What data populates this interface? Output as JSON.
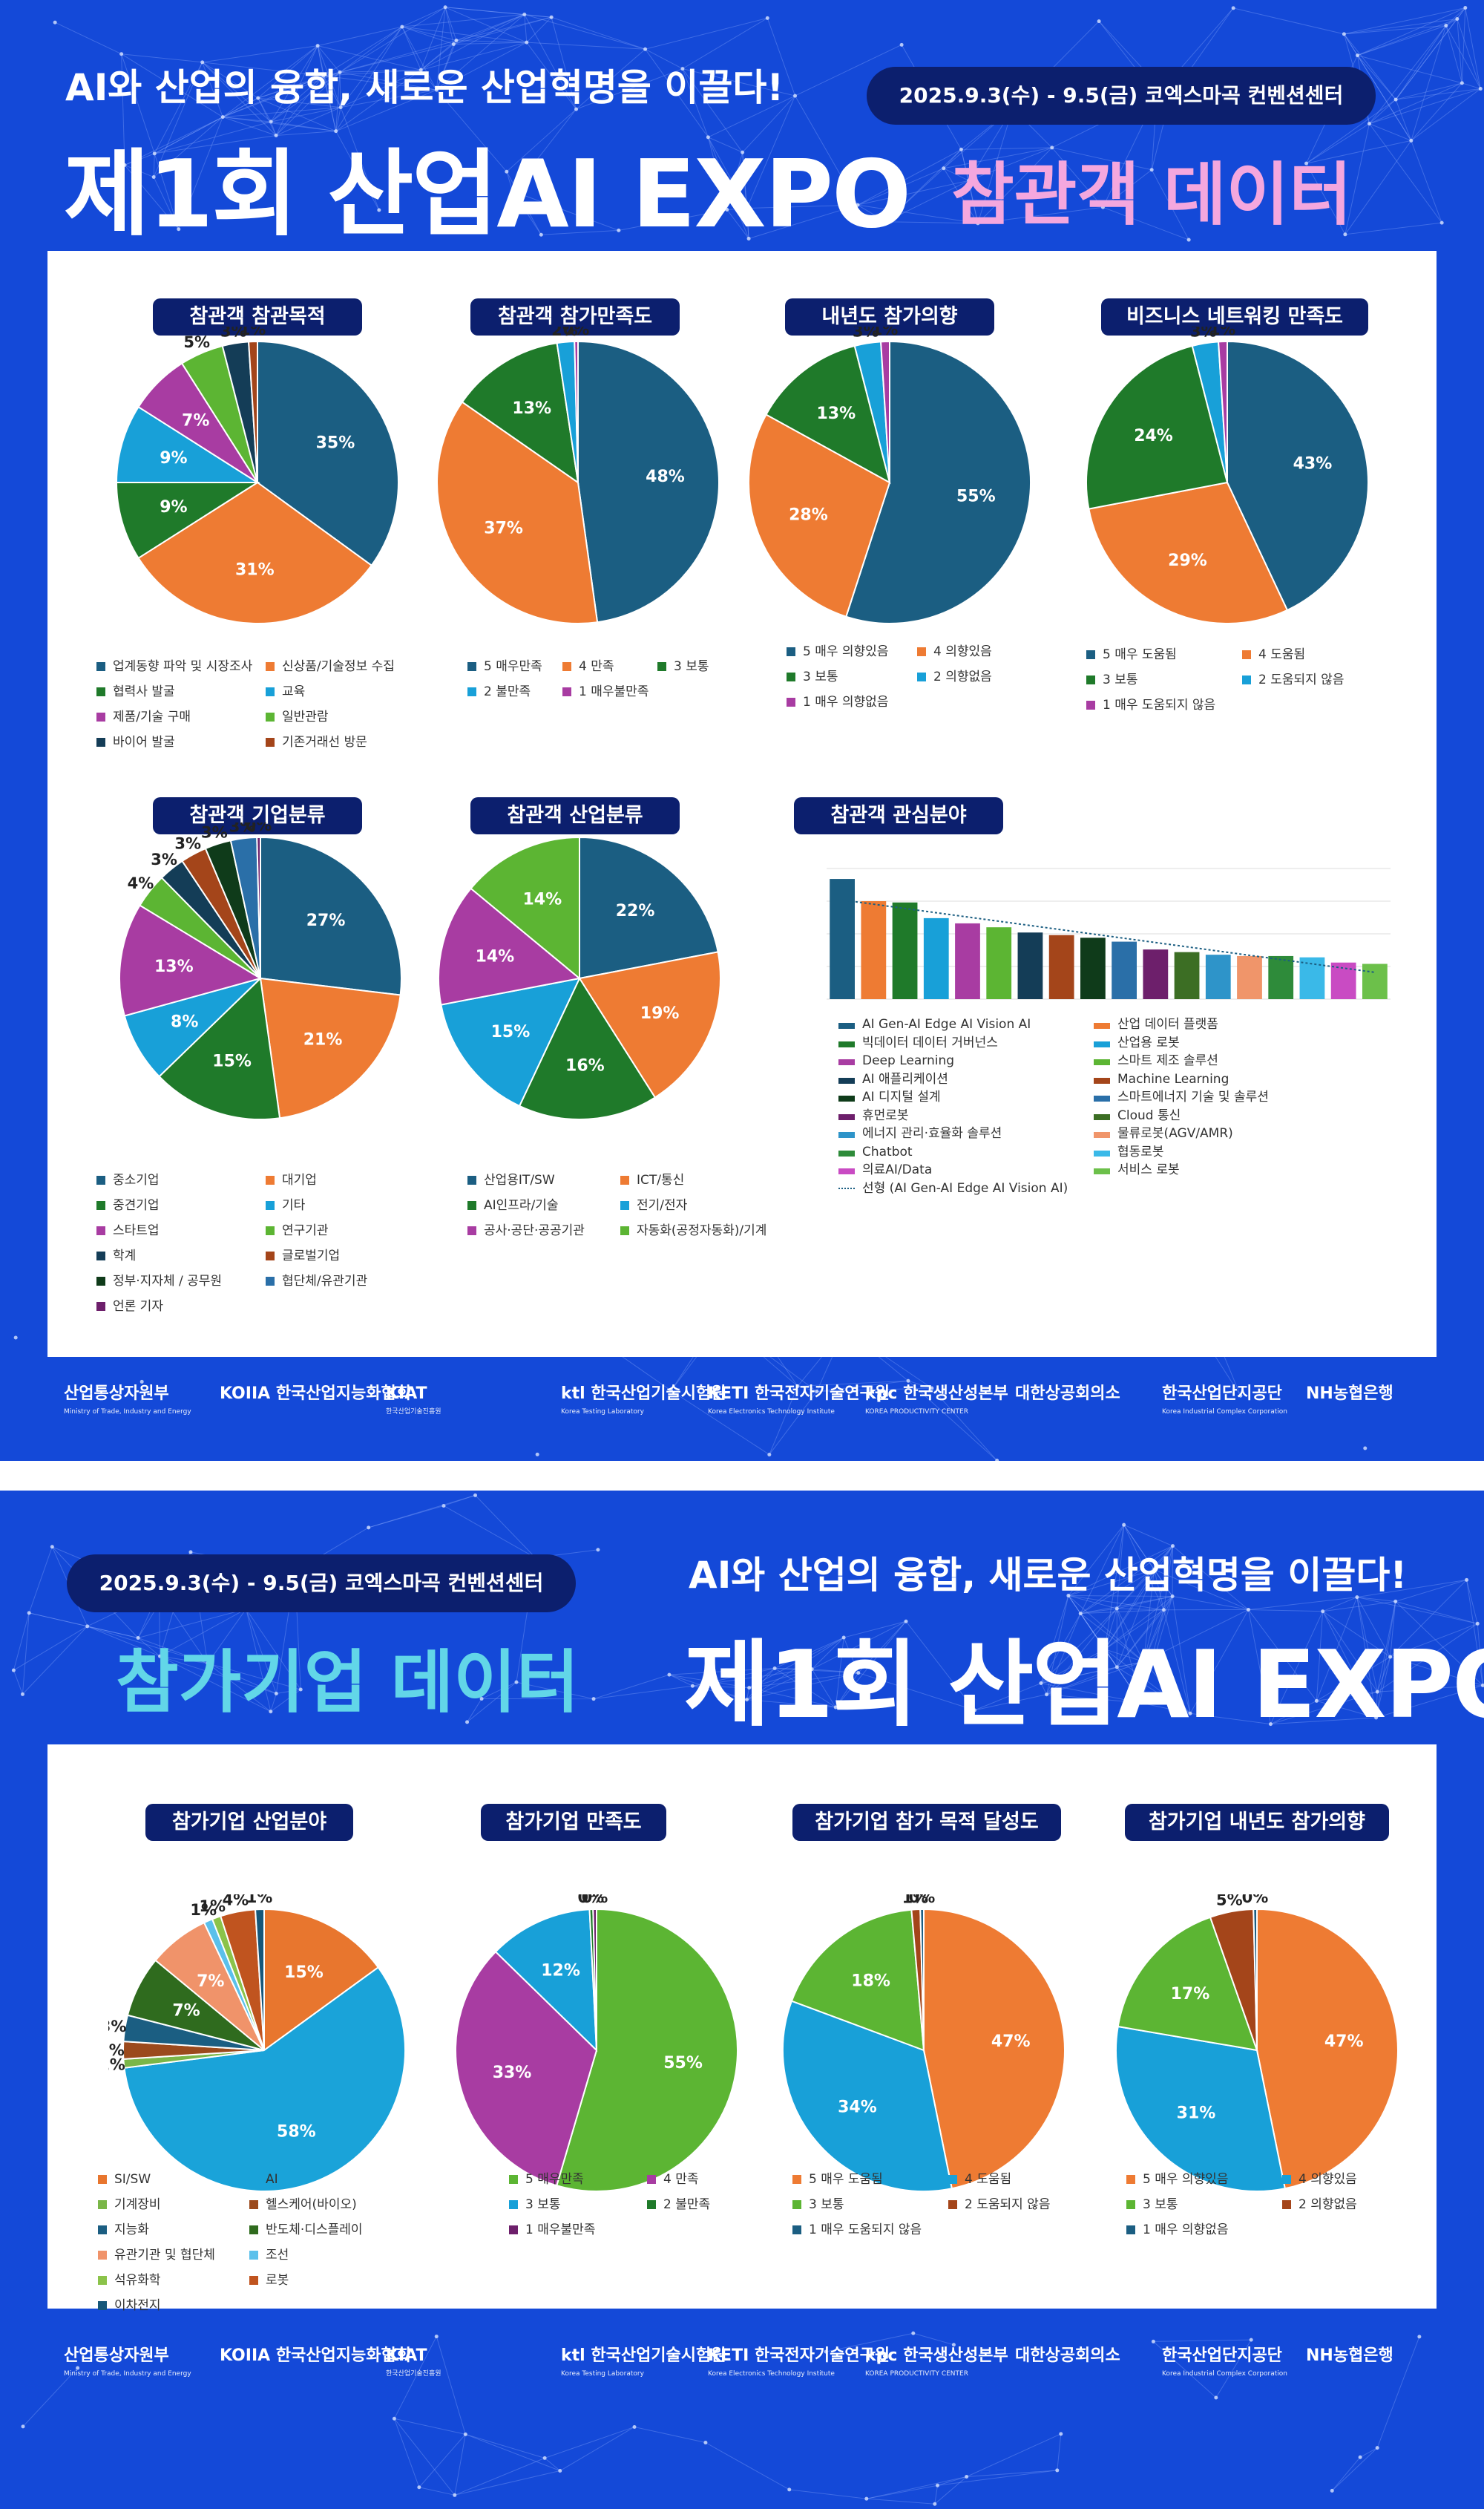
{
  "header": {
    "tagline": "AI와 산업의 융합, 새로운 산업혁명을 이끌다!",
    "title": "제1회 산업AI EXPO",
    "date": "2025.9.3(수) - 9.5(금)  코엑스마곡 컨벤션센터"
  },
  "sections": [
    {
      "subtitle": "참관객 데이터",
      "subtitle_color": "#f4a7de",
      "charts": [
        {
          "type": "pie",
          "title": "참관객 참관목적",
          "slices": [
            {
              "label": "업계동향 파악 및 시장조사",
              "value": 35,
              "text": "35%",
              "color": "#1b5e82"
            },
            {
              "label": "신상품/기술정보 수집",
              "value": 31,
              "text": "31%",
              "color": "#ee7b33"
            },
            {
              "label": "협력사 발굴",
              "value": 9,
              "text": "9%",
              "color": "#1f7a2a"
            },
            {
              "label": "교육",
              "value": 9,
              "text": "9%",
              "color": "#18a0d8"
            },
            {
              "label": "제품/기술 구매",
              "value": 7,
              "text": "7%",
              "color": "#a83ca2"
            },
            {
              "label": "일반관람",
              "value": 5,
              "text": "5%",
              "color": "#5cb533"
            },
            {
              "label": "바이어 발굴",
              "value": 3,
              "text": "3%",
              "color": "#143d57"
            },
            {
              "label": "기존거래선 방문",
              "value": 1,
              "text": "1%",
              "color": "#a4451a"
            }
          ]
        },
        {
          "type": "pie",
          "title": "참관객 참가만족도",
          "slices": [
            {
              "label": "5 매우만족",
              "value": 48,
              "text": "48%",
              "color": "#1b5e82"
            },
            {
              "label": "4 만족",
              "value": 37,
              "text": "37%",
              "color": "#ee7b33"
            },
            {
              "label": "3 보통",
              "value": 13,
              "text": "13%",
              "color": "#1f7a2a"
            },
            {
              "label": "2 불만족",
              "value": 2,
              "text": "2%",
              "color": "#18a0d8"
            },
            {
              "label": "1 매우불만족",
              "value": 0.4,
              "text": "0%",
              "color": "#a83ca2"
            }
          ]
        },
        {
          "type": "pie",
          "title": "내년도 참가의향",
          "slices": [
            {
              "label": "5 매우 의향있음",
              "value": 55,
              "text": "55%",
              "color": "#1b5e82"
            },
            {
              "label": "4 의향있음",
              "value": 28,
              "text": "28%",
              "color": "#ee7b33"
            },
            {
              "label": "3 보통",
              "value": 13,
              "text": "13%",
              "color": "#1f7a2a"
            },
            {
              "label": "2 의향없음",
              "value": 3,
              "text": "3%",
              "color": "#18a0d8"
            },
            {
              "label": "1 매우 의향없음",
              "value": 1,
              "text": "1%",
              "color": "#a83ca2"
            }
          ]
        },
        {
          "type": "pie",
          "title": "비즈니스 네트워킹 만족도",
          "slices": [
            {
              "label": "5 매우 도움됨",
              "value": 43,
              "text": "43%",
              "color": "#1b5e82"
            },
            {
              "label": "4 도움됨",
              "value": 29,
              "text": "29%",
              "color": "#ee7b33"
            },
            {
              "label": "3 보통",
              "value": 24,
              "text": "24%",
              "color": "#1f7a2a"
            },
            {
              "label": "2 도움되지 않음",
              "value": 3,
              "text": "3%",
              "color": "#18a0d8"
            },
            {
              "label": "1 매우 도움되지 않음",
              "value": 1,
              "text": "1%",
              "color": "#a83ca2"
            }
          ]
        },
        {
          "type": "pie",
          "title": "참관객 기업분류",
          "slices": [
            {
              "label": "중소기업",
              "value": 27,
              "text": "27%",
              "color": "#1b5e82"
            },
            {
              "label": "대기업",
              "value": 21,
              "text": "21%",
              "color": "#ee7b33"
            },
            {
              "label": "중견기업",
              "value": 15,
              "text": "15%",
              "color": "#1f7a2a"
            },
            {
              "label": "기타",
              "value": 8,
              "text": "8%",
              "color": "#18a0d8"
            },
            {
              "label": "스타트업",
              "value": 13,
              "text": "13%",
              "color": "#a83ca2"
            },
            {
              "label": "연구기관",
              "value": 4,
              "text": "4%",
              "color": "#5cb533"
            },
            {
              "label": "학계",
              "value": 3,
              "text": "3%",
              "color": "#143d57"
            },
            {
              "label": "글로벌기업",
              "value": 3,
              "text": "3%",
              "color": "#a4451a"
            },
            {
              "label": "정부·지자체 / 공무원",
              "value": 3,
              "text": "3%",
              "color": "#0f3b1a"
            },
            {
              "label": "협단체/유관기관",
              "value": 3,
              "text": "3%",
              "color": "#2a6fa8"
            },
            {
              "label": "언론 기자",
              "value": 0.4,
              "text": "0%",
              "color": "#6d1f6b"
            }
          ]
        },
        {
          "type": "pie",
          "title": "참관객 산업분류",
          "slices": [
            {
              "label": "산업용IT/SW",
              "value": 22,
              "text": "22%",
              "color": "#1b5e82"
            },
            {
              "label": "ICT/통신",
              "value": 19,
              "text": "19%",
              "color": "#ee7b33"
            },
            {
              "label": "AI인프라/기술",
              "value": 16,
              "text": "16%",
              "color": "#1f7a2a"
            },
            {
              "label": "전기/전자",
              "value": 15,
              "text": "15%",
              "color": "#18a0d8"
            },
            {
              "label": "공사·공단·공공기관",
              "value": 14,
              "text": "14%",
              "color": "#a83ca2"
            },
            {
              "label": "자동화(공정자동화)/기계",
              "value": 14,
              "text": "14%",
              "color": "#5cb533"
            }
          ]
        },
        {
          "type": "bar",
          "title": "참관객 관심분야",
          "trendline_label": "선형 (AI Gen-AI Edge AI Vision AI)",
          "categories": [
            "AI Gen-AI Edge AI Vision AI",
            "산업 데이터 플랫폼",
            "빅데이터 데이터 거버넌스",
            "산업용 로봇",
            "Deep Learning",
            "스마트 제조 솔루션",
            "AI 애플리케이션",
            "Machine Learning",
            "AI 디지털 설계",
            "스마트에너지 기술 및 솔루션",
            "휴먼로봇",
            "Cloud 통신",
            "에너지 관리·효율화 솔루션",
            "물류로봇(AGV/AMR)",
            "Chatbot",
            "협동로봇",
            "의료AI/Data",
            "서비스 로봇"
          ],
          "values": [
            92,
            75,
            74,
            62,
            58,
            55,
            51,
            49,
            47,
            44,
            38,
            36,
            34,
            33,
            33,
            32,
            28,
            27
          ],
          "colors": [
            "#1b5e82",
            "#ee7b33",
            "#1f7a2a",
            "#18a0d8",
            "#a83ca2",
            "#5cb533",
            "#143d57",
            "#a4451a",
            "#0f3b1a",
            "#2a6fa8",
            "#6d1f6b",
            "#3c6e24",
            "#2e94c9",
            "#f0956a",
            "#2e8b3a",
            "#3ab9e8",
            "#c94bc3",
            "#6cc04a"
          ]
        }
      ]
    },
    {
      "subtitle": "참가기업 데이터",
      "subtitle_color": "#62d6e8",
      "charts": [
        {
          "type": "pie",
          "title": "참가기업  산업분야",
          "slices": [
            {
              "label": "SI/SW",
              "value": 15,
              "text": "15%",
              "color": "#e8762e"
            },
            {
              "label": "AI",
              "value": 58,
              "text": "58%",
              "color": "#1aa3d9"
            },
            {
              "label": "기계장비",
              "value": 1,
              "text": "1%",
              "color": "#7ab648"
            },
            {
              "label": "헬스케어(바이오)",
              "value": 2,
              "text": "2%",
              "color": "#9b4a1d"
            },
            {
              "label": "지능화",
              "value": 3,
              "text": "3%",
              "color": "#1b5e82"
            },
            {
              "label": "반도체·디스플레이",
              "value": 7,
              "text": "7%",
              "color": "#2f6b1e"
            },
            {
              "label": "유관기관 및 협단체",
              "value": 7,
              "text": "7%",
              "color": "#f0936a"
            },
            {
              "label": "조선",
              "value": 1,
              "text": "1%",
              "color": "#5bc0eb"
            },
            {
              "label": "석유화학",
              "value": 1,
              "text": "1%",
              "color": "#8bc34a"
            },
            {
              "label": "로봇",
              "value": 4,
              "text": "4%",
              "color": "#c0541f"
            },
            {
              "label": "이차전지",
              "value": 1,
              "text": "1%",
              "color": "#15577a"
            }
          ]
        },
        {
          "type": "pie",
          "title": "참가기업 만족도",
          "slices": [
            {
              "label": "5 매우만족",
              "value": 55,
              "text": "55%",
              "color": "#5cb533"
            },
            {
              "label": "4 만족",
              "value": 33,
              "text": "33%",
              "color": "#a83ca2"
            },
            {
              "label": "3 보통",
              "value": 12,
              "text": "12%",
              "color": "#18a0d8"
            },
            {
              "label": "2 불만족",
              "value": 0.4,
              "text": "0%",
              "color": "#1f7a2a"
            },
            {
              "label": "1 매우불만족",
              "value": 0.4,
              "text": "0%",
              "color": "#6d1f6b"
            }
          ]
        },
        {
          "type": "pie",
          "title": "참가기업 참가 목적 달성도",
          "slices": [
            {
              "label": "5 매우 도움됨",
              "value": 47,
              "text": "47%",
              "color": "#ee7b33"
            },
            {
              "label": "4 도움됨",
              "value": 34,
              "text": "34%",
              "color": "#18a0d8"
            },
            {
              "label": "3 보통",
              "value": 18,
              "text": "18%",
              "color": "#5cb533"
            },
            {
              "label": "2 도움되지 않음",
              "value": 1,
              "text": "1%",
              "color": "#a4451a"
            },
            {
              "label": "1 매우 도움되지 않음",
              "value": 0.4,
              "text": "0%",
              "color": "#1b5e82"
            }
          ]
        },
        {
          "type": "pie",
          "title": "참가기업 내년도 참가의향",
          "slices": [
            {
              "label": "5 매우 의향있음",
              "value": 47,
              "text": "47%",
              "color": "#ee7b33"
            },
            {
              "label": "4 의향있음",
              "value": 31,
              "text": "31%",
              "color": "#18a0d8"
            },
            {
              "label": "3 보통",
              "value": 17,
              "text": "17%",
              "color": "#5cb533"
            },
            {
              "label": "2 의향없음",
              "value": 5,
              "text": "5%",
              "color": "#a4451a"
            },
            {
              "label": "1 매우 의향없음",
              "value": 0.4,
              "text": "0%",
              "color": "#1b5e82"
            }
          ]
        }
      ]
    }
  ],
  "logos": [
    {
      "name": "산업통상자원부",
      "sub": "Ministry of Trade, Industry and Energy"
    },
    {
      "name": "KOIIA 한국산업지능화협회",
      "sub": ""
    },
    {
      "name": "KIAT",
      "sub": "한국산업기술진흥원"
    },
    {
      "name": "ktl 한국산업기술시험원",
      "sub": "Korea Testing Laboratory"
    },
    {
      "name": "KETI 한국전자기술연구원",
      "sub": "Korea Electronics Technology Institute"
    },
    {
      "name": "kpc 한국생산성본부",
      "sub": "KOREA PRODUCTIVITY CENTER"
    },
    {
      "name": "대한상공회의소",
      "sub": ""
    },
    {
      "name": "한국산업단지공단",
      "sub": "Korea Industrial Complex Corporation"
    },
    {
      "name": "NH농협은행",
      "sub": ""
    }
  ]
}
